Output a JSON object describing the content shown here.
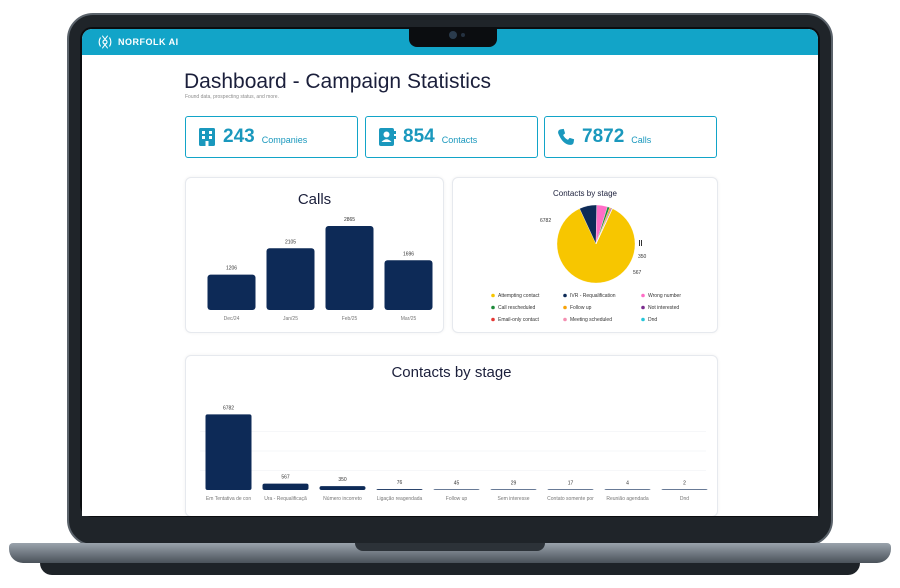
{
  "app": {
    "brand": "NORFOLK AI"
  },
  "page": {
    "title": "Dashboard - Campaign Statistics",
    "subtitle": "Found data, prospecting status, and more."
  },
  "stats": [
    {
      "value": "243",
      "label": "Companies",
      "icon": "building-icon"
    },
    {
      "value": "854",
      "label": "Contacts",
      "icon": "contact-book-icon"
    },
    {
      "value": "7872",
      "label": "Calls",
      "icon": "phone-icon"
    }
  ],
  "calls_card": {
    "title": "Calls"
  },
  "pie_card": {
    "title": "Contacts by stage"
  },
  "bars_card": {
    "title": "Contacts by stage"
  },
  "colors": {
    "accent": "#12a4c8",
    "bar": "#0d2a57"
  },
  "chart_data": [
    {
      "type": "bar",
      "title": "Calls",
      "categories": [
        "Dec/24",
        "Jan/25",
        "Feb/25",
        "Mar/25"
      ],
      "values": [
        1206,
        2105,
        2865,
        1696
      ],
      "ylim": [
        0,
        3000
      ],
      "grid": false,
      "color": "#0d2a57"
    },
    {
      "type": "pie",
      "title": "Contacts by stage",
      "slices": [
        {
          "label": "Attempting contact",
          "value": 6782,
          "color": "#f7c600"
        },
        {
          "label": "IVR - Requalification",
          "value": 567,
          "color": "#0d2a57"
        },
        {
          "label": "Wrong number",
          "value": 350,
          "color": "#ff6ec7"
        },
        {
          "label": "Call rescheduled",
          "value": 76,
          "color": "#1e8a3a"
        },
        {
          "label": "Follow up",
          "value": 45,
          "color": "#f7a30a"
        },
        {
          "label": "Not interested",
          "value": 29,
          "color": "#7b2d8e"
        },
        {
          "label": "Email-only contact",
          "value": 17,
          "color": "#e53935"
        },
        {
          "label": "Meeting scheduled",
          "value": 4,
          "color": "#f48fb1"
        },
        {
          "label": "Dnd",
          "value": 2,
          "color": "#26c6da"
        }
      ],
      "data_labels": [
        "6782",
        "567",
        "350"
      ],
      "legend": "bottom"
    },
    {
      "type": "bar",
      "title": "Contacts by stage",
      "categories": [
        "Em Tentativa de con",
        "Ura - Requalificaçã",
        "Número incorreto",
        "Ligação reagendada",
        "Follow up",
        "Sem interesse",
        "Contato somente por",
        "Reunião agendada",
        "Dnd"
      ],
      "values": [
        6782,
        567,
        350,
        76,
        45,
        29,
        17,
        4,
        2
      ],
      "ylim": [
        0,
        7000
      ],
      "grid": true,
      "color": "#0d2a57"
    }
  ]
}
